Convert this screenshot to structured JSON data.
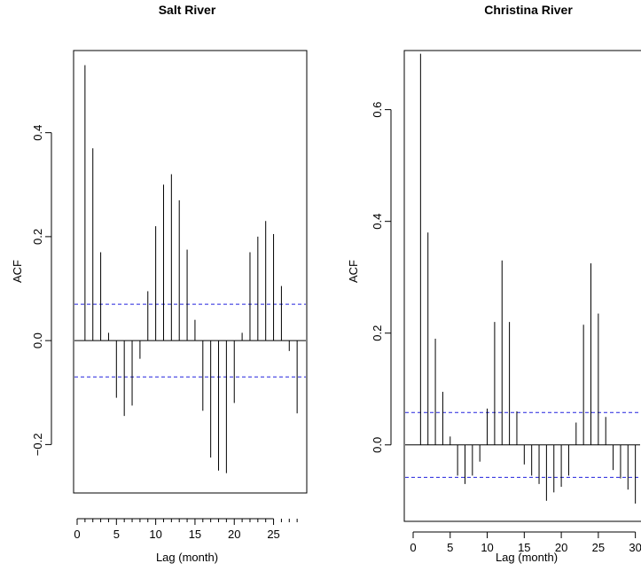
{
  "chart_data": [
    {
      "type": "bar",
      "title": "Salt River",
      "xlabel": "Lag (month)",
      "ylabel": "ACF",
      "xlim": [
        0,
        29
      ],
      "ylim": [
        -0.3,
        0.57
      ],
      "xticks": [
        0,
        5,
        10,
        15,
        20,
        25
      ],
      "yticks": [
        -0.2,
        0.0,
        0.2,
        0.4
      ],
      "ytick_labels": [
        "−0.2",
        "0.0",
        "0.2",
        "0.4"
      ],
      "minor_xticks_range": [
        1,
        28
      ],
      "confidence_band": 0.07,
      "lags": [
        1,
        2,
        3,
        4,
        5,
        6,
        7,
        8,
        9,
        10,
        11,
        12,
        13,
        14,
        15,
        16,
        17,
        18,
        19,
        20,
        21,
        22,
        23,
        24,
        25,
        26,
        27,
        28
      ],
      "values": [
        0.53,
        0.37,
        0.17,
        0.015,
        -0.11,
        -0.145,
        -0.125,
        -0.035,
        0.095,
        0.22,
        0.3,
        0.32,
        0.27,
        0.175,
        0.04,
        -0.135,
        -0.225,
        -0.25,
        -0.255,
        -0.12,
        0.015,
        0.17,
        0.2,
        0.23,
        0.205,
        0.105,
        -0.02,
        -0.14
      ]
    },
    {
      "type": "bar",
      "title": "Christina River",
      "xlabel": "Lag (month)",
      "ylabel": "ACF",
      "xlim": [
        0,
        31
      ],
      "ylim": [
        -0.14,
        0.72
      ],
      "xticks": [
        0,
        5,
        10,
        15,
        20,
        25,
        30
      ],
      "yticks": [
        0.0,
        0.2,
        0.4,
        0.6
      ],
      "ytick_labels": [
        "0.0",
        "0.2",
        "0.4",
        "0.6"
      ],
      "minor_xticks_range": [],
      "confidence_band": 0.058,
      "lags": [
        1,
        2,
        3,
        4,
        5,
        6,
        7,
        8,
        9,
        10,
        11,
        12,
        13,
        14,
        15,
        16,
        17,
        18,
        19,
        20,
        21,
        22,
        23,
        24,
        25,
        26,
        27,
        28,
        29,
        30
      ],
      "values": [
        0.7,
        0.38,
        0.19,
        0.095,
        0.015,
        -0.055,
        -0.07,
        -0.055,
        -0.03,
        0.065,
        0.22,
        0.33,
        0.22,
        0.06,
        -0.035,
        -0.055,
        -0.07,
        -0.1,
        -0.085,
        -0.075,
        -0.055,
        0.04,
        0.215,
        0.325,
        0.235,
        0.05,
        -0.045,
        -0.06,
        -0.08,
        -0.105
      ]
    }
  ]
}
